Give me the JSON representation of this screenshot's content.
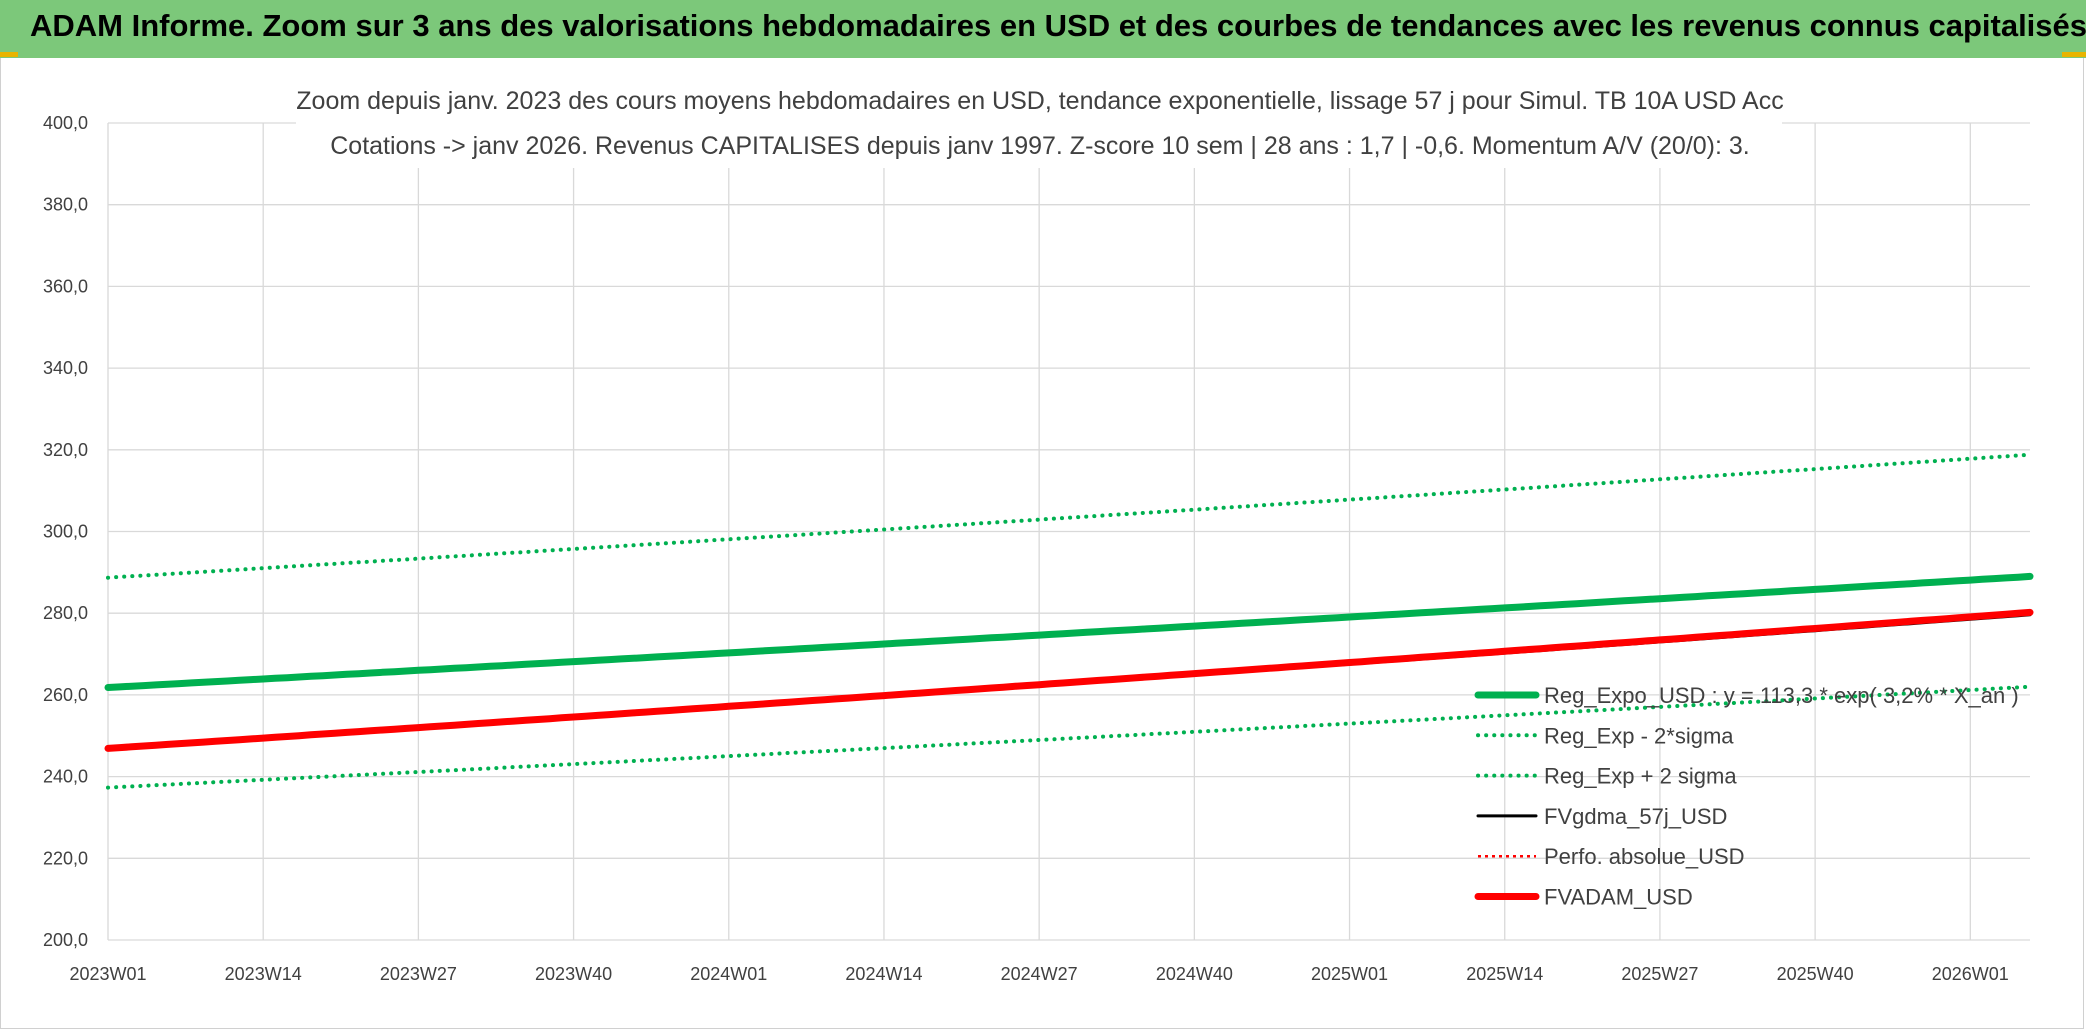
{
  "header": {
    "title": "ADAM Informe. Zoom sur 3 ans des valorisations hebdomadaires en USD et des courbes de tendances avec les revenus connus capitalisés"
  },
  "colors": {
    "banner": "#7cc87a",
    "trend_green": "#00b050",
    "red": "#ff0000",
    "black": "#000000",
    "grid": "#d9d9d9"
  },
  "chart_data": {
    "type": "line",
    "title_lines": [
      "Zoom depuis janv. 2023 des cours moyens hebdomadaires en USD, tendance exponentielle, lissage 57 j pour Simul. TB 10A USD Acc",
      "Cotations -> janv 2026. Revenus CAPITALISES depuis janv 1997. Z-score 10 sem | 28 ans : 1,7 | -0,6. Momentum A/V (20/0): 3."
    ],
    "x_tick_labels": [
      "2023W01",
      "2023W14",
      "2023W27",
      "2023W40",
      "2024W01",
      "2024W14",
      "2024W27",
      "2024W40",
      "2025W01",
      "2025W14",
      "2025W27",
      "2025W40",
      "2026W01"
    ],
    "x_range_weeks": [
      0,
      161
    ],
    "y_tick_labels": [
      "200,0",
      "220,0",
      "240,0",
      "260,0",
      "280,0",
      "300,0",
      "320,0",
      "340,0",
      "360,0",
      "380,0",
      "400,0"
    ],
    "ylim": [
      200,
      400
    ],
    "grid": true,
    "legend_position": "bottom-right",
    "series": [
      {
        "name": "Reg_Expo_USD : y = 113,3 * exp( 3,2% * X_an )",
        "color": "#00b050",
        "style": "solid-thick",
        "start": 261.8,
        "end": 289.0
      },
      {
        "name": "Reg_Exp - 2*sigma",
        "color": "#00b050",
        "style": "dotted",
        "start": 237.3,
        "end": 262.0
      },
      {
        "name": "Reg_Exp + 2 sigma",
        "color": "#00b050",
        "style": "dotted",
        "start": 288.7,
        "end": 318.8
      },
      {
        "name": "FVgdma_57j_USD",
        "color": "#000000",
        "style": "solid",
        "start": 246.8,
        "end": 279.6
      },
      {
        "name": "Perfo. absolue_USD",
        "color": "#ff0000",
        "style": "dotted-thin",
        "start": 246.8,
        "end": 280.0
      },
      {
        "name": "FVADAM_USD",
        "color": "#ff0000",
        "style": "solid-thick",
        "start": 246.9,
        "end": 280.2
      }
    ]
  }
}
